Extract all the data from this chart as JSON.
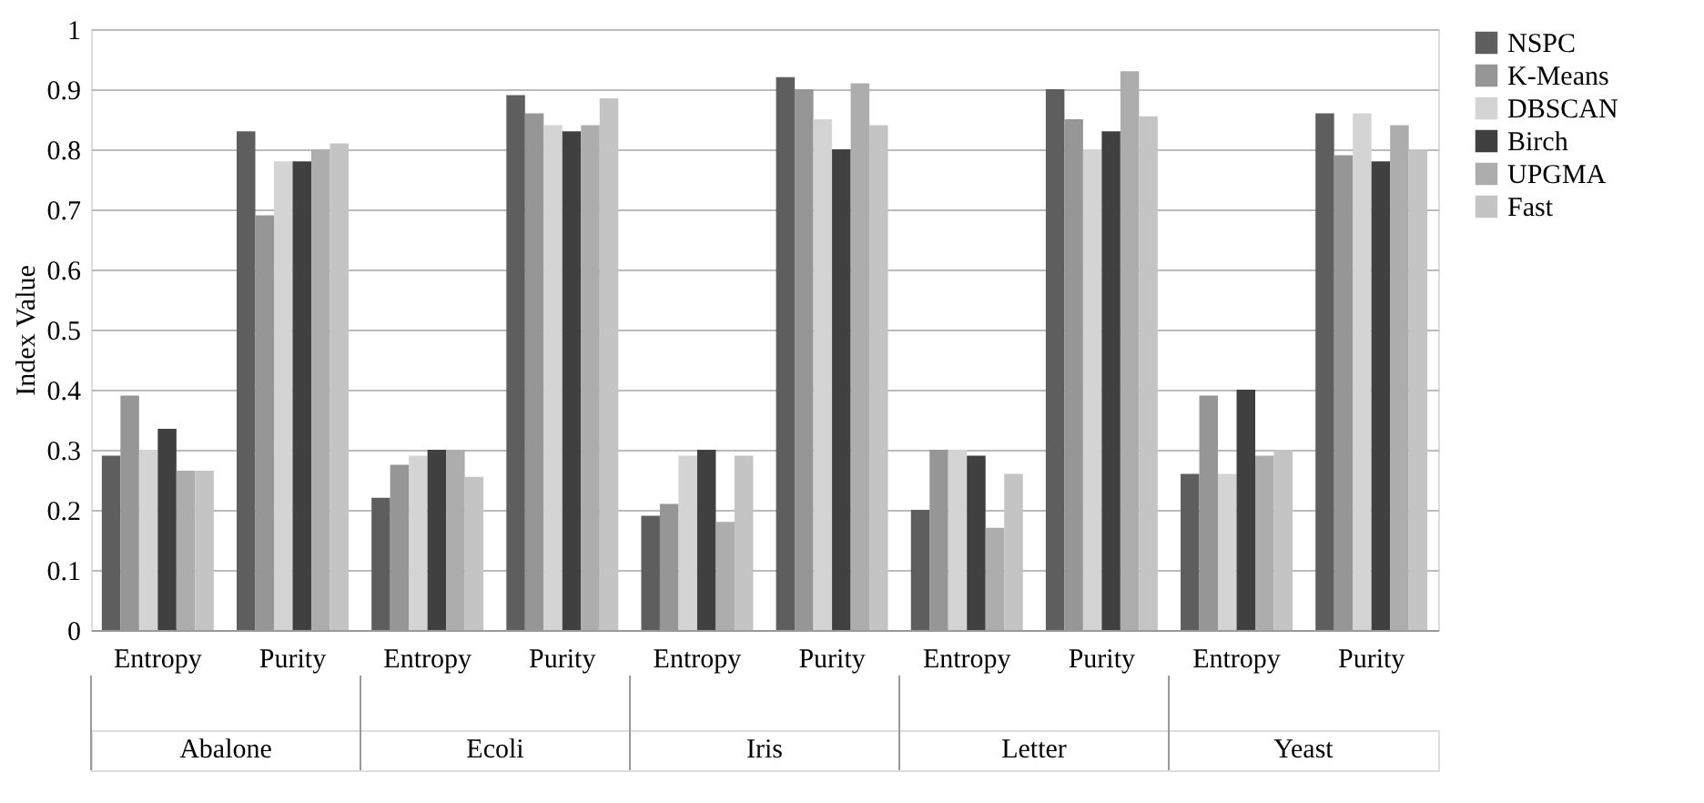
{
  "chart_data": {
    "type": "bar",
    "ylabel": "Index Value",
    "categories": [
      "Entropy",
      "Purity",
      "Entropy",
      "Purity",
      "Entropy",
      "Purity",
      "Entropy",
      "Purity",
      "Entropy",
      "Purity"
    ],
    "annotations": [
      "Abalone",
      "Ecoli",
      "Iris",
      "Letter",
      "Yeast"
    ],
    "series": [
      {
        "name": "NSPC",
        "color": "#5e5e5e",
        "values": [
          0.29,
          0.83,
          0.22,
          0.89,
          0.19,
          0.92,
          0.2,
          0.9,
          0.26,
          0.86
        ]
      },
      {
        "name": "K-Means",
        "color": "#969696",
        "values": [
          0.39,
          0.69,
          0.275,
          0.86,
          0.21,
          0.9,
          0.3,
          0.85,
          0.39,
          0.79
        ]
      },
      {
        "name": "DBSCAN",
        "color": "#d4d4d4",
        "values": [
          0.3,
          0.78,
          0.29,
          0.84,
          0.29,
          0.85,
          0.3,
          0.8,
          0.26,
          0.86
        ]
      },
      {
        "name": "Birch",
        "color": "#404040",
        "values": [
          0.335,
          0.78,
          0.3,
          0.83,
          0.3,
          0.8,
          0.29,
          0.83,
          0.4,
          0.78
        ]
      },
      {
        "name": "UPGMA",
        "color": "#adadad",
        "values": [
          0.265,
          0.8,
          0.3,
          0.84,
          0.18,
          0.91,
          0.17,
          0.93,
          0.29,
          0.84
        ]
      },
      {
        "name": "Fast",
        "color": "#c4c4c4",
        "values": [
          0.265,
          0.81,
          0.255,
          0.885,
          0.29,
          0.84,
          0.26,
          0.855,
          0.3,
          0.8
        ]
      }
    ],
    "ylim": [
      0,
      1
    ],
    "yticks": [
      0,
      0.1,
      0.2,
      0.3,
      0.4,
      0.5,
      0.6,
      0.7,
      0.8,
      0.9,
      1
    ],
    "grid": "y",
    "legend": "right"
  }
}
